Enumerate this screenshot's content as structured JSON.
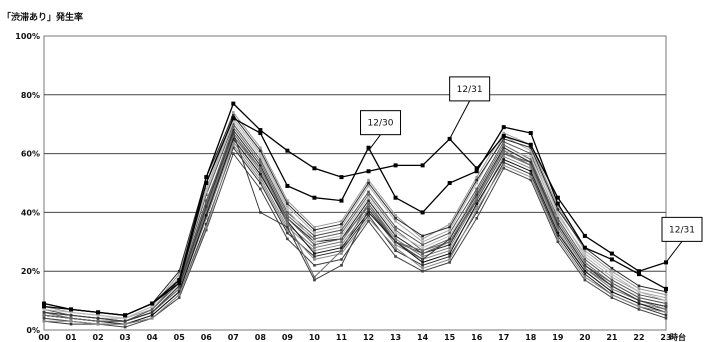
{
  "chart_data": {
    "type": "line",
    "ylabel": "「渋滞あり」発生率",
    "xunit": "時台",
    "categories": [
      "00",
      "01",
      "02",
      "03",
      "04",
      "05",
      "06",
      "07",
      "08",
      "09",
      "10",
      "11",
      "12",
      "13",
      "14",
      "15",
      "16",
      "17",
      "18",
      "19",
      "20",
      "21",
      "22",
      "23"
    ],
    "ylim": [
      0,
      100
    ],
    "yticks": [
      "0%",
      "20%",
      "40%",
      "60%",
      "80%",
      "100%"
    ],
    "ytick_values": [
      0,
      20,
      40,
      60,
      80,
      100
    ],
    "grid": true,
    "annotations": [
      {
        "text": "12/30",
        "x": "12",
        "y": 61
      },
      {
        "text": "12/31",
        "x": "15",
        "y": 65
      },
      {
        "text": "12/31",
        "x": "23",
        "y": 23
      }
    ],
    "highlight_series": [
      {
        "values": [
          8,
          7,
          6,
          5,
          9,
          17,
          52,
          77,
          68,
          61,
          55,
          52,
          54,
          56,
          56,
          65,
          55,
          66,
          63,
          45,
          32,
          26,
          20,
          23
        ]
      },
      {
        "values": [
          9,
          7,
          6,
          5,
          9,
          16,
          50,
          72,
          67,
          49,
          45,
          44,
          62,
          45,
          40,
          50,
          54,
          69,
          67,
          43,
          28,
          24,
          19,
          14
        ]
      }
    ],
    "series": [
      {
        "values": [
          5,
          4,
          3,
          3,
          6,
          15,
          42,
          68,
          56,
          38,
          30,
          31,
          44,
          32,
          26,
          29,
          45,
          62,
          57,
          36,
          22,
          15,
          10,
          8
        ]
      },
      {
        "values": [
          7,
          5,
          4,
          3,
          7,
          17,
          46,
          70,
          58,
          40,
          32,
          34,
          47,
          35,
          29,
          33,
          48,
          64,
          60,
          38,
          24,
          17,
          12,
          10
        ]
      },
      {
        "values": [
          4,
          3,
          2,
          2,
          5,
          13,
          38,
          64,
          52,
          35,
          27,
          29,
          41,
          29,
          24,
          27,
          42,
          59,
          55,
          34,
          20,
          13,
          9,
          7
        ]
      },
      {
        "values": [
          6,
          5,
          4,
          4,
          7,
          18,
          48,
          72,
          60,
          42,
          33,
          35,
          49,
          37,
          30,
          34,
          50,
          66,
          61,
          40,
          25,
          18,
          13,
          11
        ]
      },
      {
        "values": [
          3,
          2,
          2,
          2,
          4,
          12,
          36,
          62,
          50,
          33,
          25,
          27,
          39,
          27,
          22,
          25,
          40,
          57,
          53,
          32,
          19,
          12,
          8,
          5
        ]
      },
      {
        "values": [
          5,
          4,
          3,
          3,
          6,
          14,
          40,
          66,
          54,
          36,
          28,
          30,
          43,
          31,
          25,
          28,
          44,
          60,
          56,
          35,
          21,
          14,
          10,
          8
        ]
      },
      {
        "values": [
          8,
          6,
          5,
          4,
          8,
          19,
          50,
          74,
          62,
          44,
          35,
          37,
          51,
          39,
          31,
          36,
          52,
          67,
          63,
          42,
          27,
          20,
          14,
          12
        ]
      },
      {
        "values": [
          4,
          3,
          2,
          1,
          4,
          11,
          34,
          60,
          48,
          31,
          22,
          24,
          37,
          25,
          20,
          23,
          38,
          55,
          51,
          30,
          17,
          11,
          7,
          4
        ]
      },
      {
        "values": [
          6,
          4,
          3,
          3,
          6,
          15,
          43,
          69,
          57,
          39,
          31,
          33,
          46,
          34,
          27,
          31,
          47,
          63,
          58,
          37,
          23,
          16,
          11,
          9
        ]
      },
      {
        "values": [
          7,
          6,
          5,
          4,
          8,
          18,
          47,
          71,
          59,
          41,
          30,
          32,
          45,
          33,
          28,
          32,
          46,
          61,
          59,
          39,
          26,
          19,
          13,
          10
        ]
      },
      {
        "values": [
          5,
          4,
          3,
          2,
          5,
          13,
          39,
          65,
          53,
          37,
          26,
          28,
          40,
          30,
          23,
          26,
          43,
          58,
          54,
          33,
          20,
          13,
          9,
          6
        ]
      },
      {
        "values": [
          6,
          5,
          4,
          3,
          7,
          16,
          44,
          67,
          55,
          38,
          29,
          31,
          42,
          30,
          26,
          30,
          44,
          60,
          57,
          36,
          22,
          16,
          11,
          9
        ]
      },
      {
        "values": [
          3,
          3,
          2,
          2,
          4,
          12,
          35,
          63,
          51,
          34,
          24,
          26,
          38,
          28,
          21,
          24,
          41,
          56,
          52,
          31,
          18,
          12,
          8,
          6
        ]
      },
      {
        "values": [
          9,
          7,
          6,
          5,
          9,
          20,
          52,
          73,
          61,
          43,
          34,
          36,
          50,
          38,
          32,
          35,
          51,
          65,
          62,
          41,
          28,
          21,
          15,
          13
        ]
      },
      {
        "values": [
          5,
          4,
          3,
          3,
          6,
          14,
          41,
          66,
          55,
          37,
          18,
          27,
          43,
          30,
          27,
          30,
          45,
          61,
          56,
          35,
          21,
          15,
          10,
          7
        ]
      },
      {
        "values": [
          6,
          5,
          4,
          3,
          6,
          15,
          42,
          67,
          40,
          35,
          17,
          22,
          41,
          30,
          24,
          31,
          46,
          62,
          57,
          36,
          22,
          15,
          10,
          8
        ]
      }
    ]
  }
}
